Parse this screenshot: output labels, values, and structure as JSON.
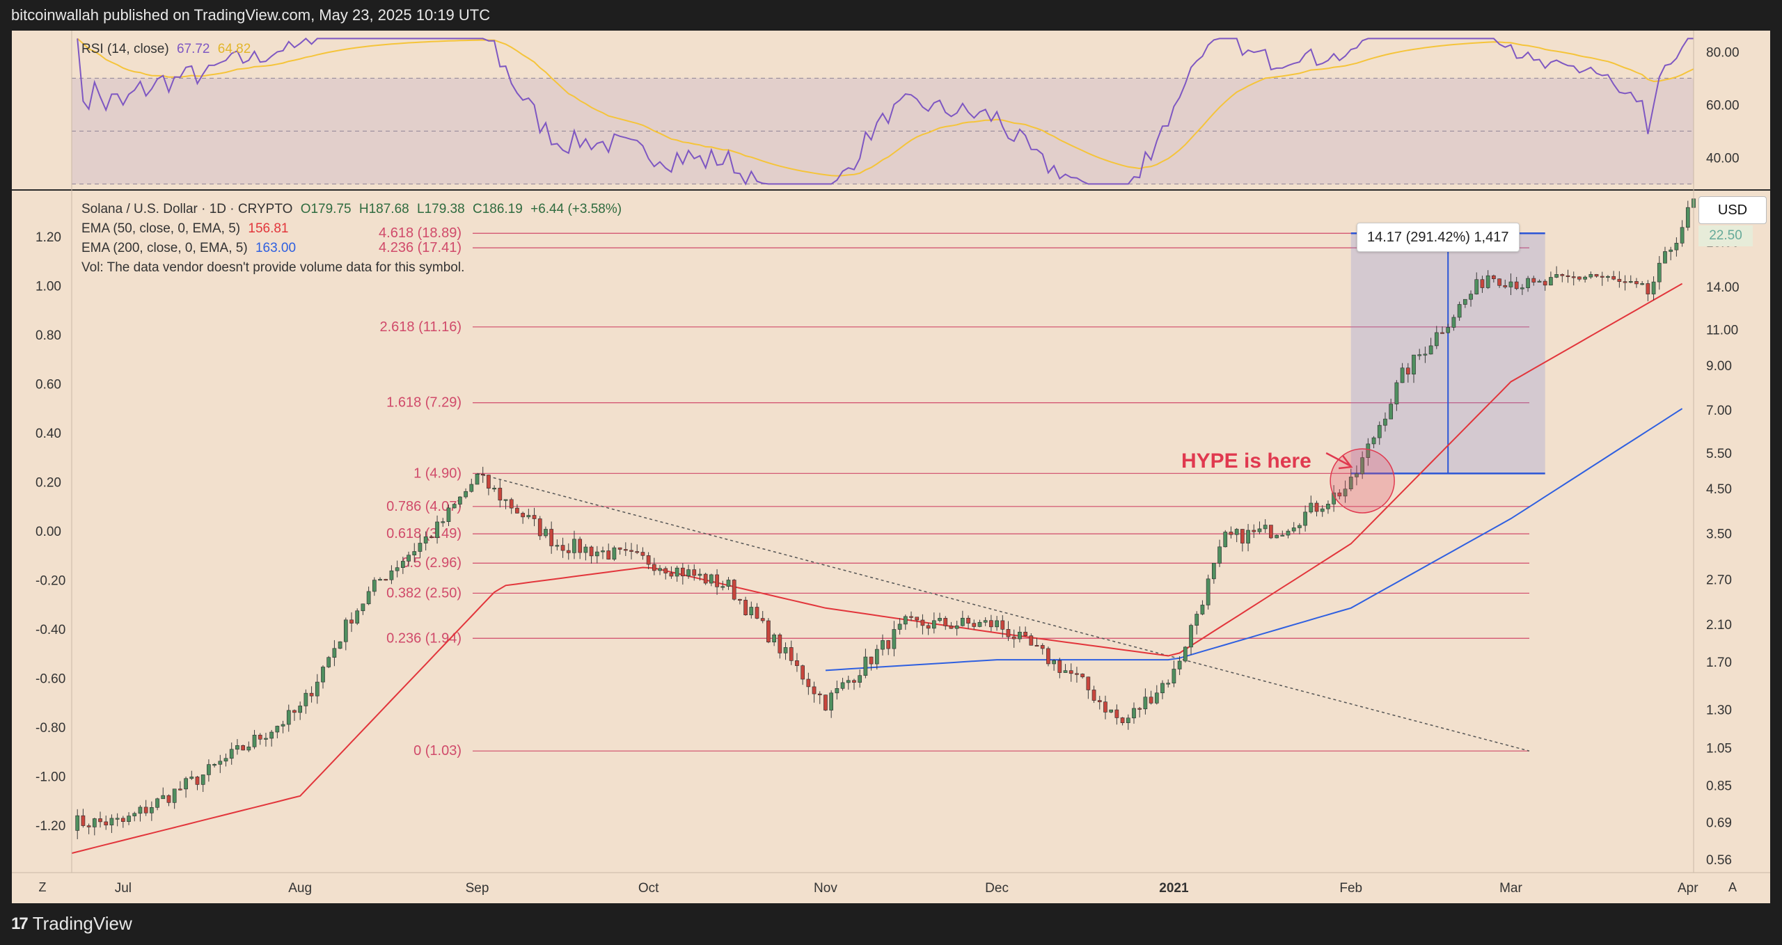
{
  "header": {
    "publisher": "bitcoinwallah published on TradingView.com, May 23, 2025 10:19 UTC"
  },
  "footer": {
    "brand_logo": "17",
    "brand_name": "TradingView"
  },
  "rsi": {
    "label": "RSI (14, close)",
    "value1": "67.72",
    "value2": "64.82",
    "axis_ticks": [
      "80.00",
      "60.00",
      "40.00"
    ],
    "colors": {
      "rsi": "#7e57c2",
      "signal": "#f5c43a",
      "band": "#9a8fb8"
    }
  },
  "legend": {
    "symbol": "Solana / U.S. Dollar · 1D · CRYPTO",
    "ohlc": {
      "O": "O179.75",
      "H": "H187.68",
      "L": "L179.38",
      "C": "C186.19",
      "chg": "+6.44 (+3.58%)"
    },
    "ema50": {
      "label": "EMA (50, close, 0, EMA, 5)",
      "value": "156.81"
    },
    "ema200": {
      "label": "EMA (200, close, 0, EMA, 5)",
      "value": "163.00"
    },
    "vol": "Vol: The data vendor doesn't provide volume data for this symbol."
  },
  "price_axis": {
    "currency": "USD",
    "last_price_tag": "22.50",
    "ticks": [
      "18.00",
      "14.00",
      "11.00",
      "9.00",
      "7.00",
      "5.50",
      "4.50",
      "3.50",
      "2.70",
      "2.10",
      "1.70",
      "1.30",
      "1.05",
      "0.85",
      "0.69",
      "0.56"
    ]
  },
  "left_axis": {
    "ticks": [
      "1.20",
      "1.00",
      "0.80",
      "0.60",
      "0.40",
      "0.20",
      "0.00",
      "-0.20",
      "-0.40",
      "-0.60",
      "-0.80",
      "-1.00",
      "-1.20"
    ]
  },
  "time_axis": {
    "labels": [
      "Jul",
      "Aug",
      "Sep",
      "Oct",
      "Nov",
      "Dec",
      "2021",
      "Feb",
      "Mar",
      "Apr"
    ]
  },
  "fib_levels": [
    {
      "label": "4.618 (18.89)",
      "price": 18.89
    },
    {
      "label": "4.236 (17.41)",
      "price": 17.41
    },
    {
      "label": "2.618 (11.16)",
      "price": 11.16
    },
    {
      "label": "1.618 (7.29)",
      "price": 7.29
    },
    {
      "label": "1 (4.90)",
      "price": 4.9
    },
    {
      "label": "0.786 (4.07)",
      "price": 4.07
    },
    {
      "label": "0.618 (3.49)",
      "price": 3.49
    },
    {
      "label": "0.5 (2.96)",
      "price": 2.96
    },
    {
      "label": "0.382 (2.50)",
      "price": 2.5
    },
    {
      "label": "0.236 (1.94)",
      "price": 1.94
    },
    {
      "label": "0 (1.03)",
      "price": 1.03
    }
  ],
  "measure": {
    "label": "14.17 (291.42%) 1,417"
  },
  "annotation": {
    "text": "HYPE is here"
  },
  "controls": {
    "z": "Z",
    "a": "A"
  },
  "colors": {
    "bg": "#f2e0cd",
    "up": "#4f8f5f",
    "down": "#c8463d",
    "ema50": "#e2353b",
    "ema200": "#2e5fe0",
    "fib": "#d04a6a",
    "measure": "#2b55d6"
  },
  "chart_data": {
    "type": "candlestick",
    "title": "Solana / U.S. Dollar · 1D · CRYPTO",
    "scale": "log",
    "x_range": [
      "2020-06-22",
      "2021-04-02"
    ],
    "ylim": [
      0.52,
      24
    ],
    "series": [
      {
        "name": "SOL/USD close",
        "x": [
          "2020-07-01",
          "2020-07-15",
          "2020-08-01",
          "2020-08-10",
          "2020-08-15",
          "2020-08-25",
          "2020-09-01",
          "2020-09-15",
          "2020-10-01",
          "2020-10-15",
          "2020-11-01",
          "2020-11-15",
          "2020-12-01",
          "2020-12-15",
          "2020-12-23",
          "2021-01-01",
          "2021-01-10",
          "2021-01-20",
          "2021-02-01",
          "2021-02-10",
          "2021-02-20",
          "2021-02-25",
          "2021-03-05",
          "2021-03-15",
          "2021-03-25",
          "2021-04-02"
        ],
        "values": [
          0.69,
          0.9,
          1.3,
          2.2,
          2.7,
          3.6,
          4.8,
          3.3,
          3.0,
          2.6,
          1.35,
          2.1,
          2.1,
          1.55,
          1.2,
          1.6,
          3.4,
          3.6,
          4.6,
          8.5,
          12.5,
          15,
          14,
          15,
          13.5,
          22.5
        ]
      },
      {
        "name": "EMA (50, close, 0, EMA, 5)",
        "x": [
          "2020-06-22",
          "2020-08-01",
          "2020-09-05",
          "2020-10-01",
          "2020-11-01",
          "2020-12-01",
          "2021-01-01",
          "2021-02-01",
          "2021-03-01",
          "2021-04-01"
        ],
        "values": [
          0.58,
          0.8,
          2.6,
          2.9,
          2.3,
          2.0,
          1.75,
          3.3,
          8.2,
          14.5
        ]
      },
      {
        "name": "EMA (200, close, 0, EMA, 5)",
        "x": [
          "2020-11-01",
          "2020-12-01",
          "2021-01-01",
          "2021-02-01",
          "2021-03-01",
          "2021-04-01"
        ],
        "values": [
          1.62,
          1.72,
          1.72,
          2.3,
          3.8,
          7.2
        ]
      }
    ],
    "rsi": {
      "ylim": [
        28,
        88
      ],
      "upper": 70,
      "middle": 50,
      "lower": 30
    }
  }
}
